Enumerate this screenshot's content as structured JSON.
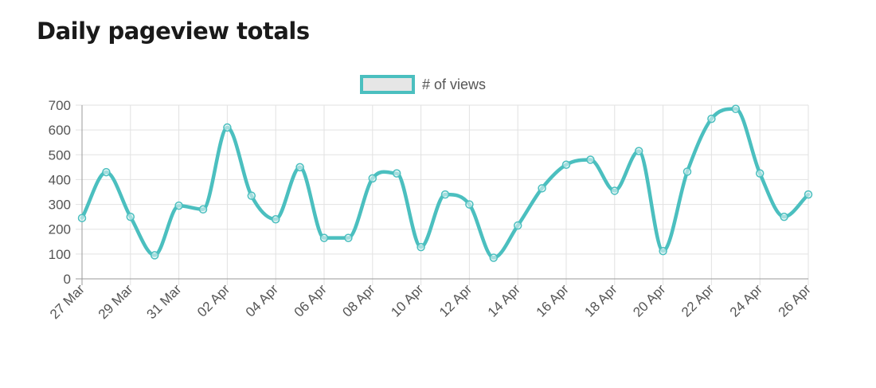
{
  "page": {
    "title": "Daily pageview totals"
  },
  "chart_data": {
    "type": "line",
    "title": "",
    "xlabel": "",
    "ylabel": "",
    "ylim": [
      0,
      700
    ],
    "y_ticks": [
      0,
      100,
      200,
      300,
      400,
      500,
      600,
      700
    ],
    "grid": true,
    "legend_position": "top-center",
    "x": [
      "27 Mar",
      "28 Mar",
      "29 Mar",
      "30 Mar",
      "31 Mar",
      "01 Apr",
      "02 Apr",
      "03 Apr",
      "04 Apr",
      "05 Apr",
      "06 Apr",
      "07 Apr",
      "08 Apr",
      "09 Apr",
      "10 Apr",
      "11 Apr",
      "12 Apr",
      "13 Apr",
      "14 Apr",
      "15 Apr",
      "16 Apr",
      "17 Apr",
      "18 Apr",
      "19 Apr",
      "20 Apr",
      "21 Apr",
      "22 Apr",
      "23 Apr",
      "24 Apr",
      "25 Apr",
      "26 Apr"
    ],
    "x_tick_labels": [
      "27 Mar",
      "29 Mar",
      "31 Mar",
      "02 Apr",
      "04 Apr",
      "06 Apr",
      "08 Apr",
      "10 Apr",
      "12 Apr",
      "14 Apr",
      "16 Apr",
      "18 Apr",
      "20 Apr",
      "22 Apr",
      "24 Apr",
      "26 Apr"
    ],
    "series": [
      {
        "name": "# of views",
        "color": "#4bbfbf",
        "values": [
          245,
          430,
          250,
          95,
          295,
          280,
          610,
          335,
          240,
          450,
          165,
          165,
          405,
          425,
          128,
          340,
          300,
          85,
          215,
          365,
          460,
          480,
          355,
          515,
          112,
          432,
          645,
          685,
          425,
          250,
          340
        ]
      }
    ]
  }
}
